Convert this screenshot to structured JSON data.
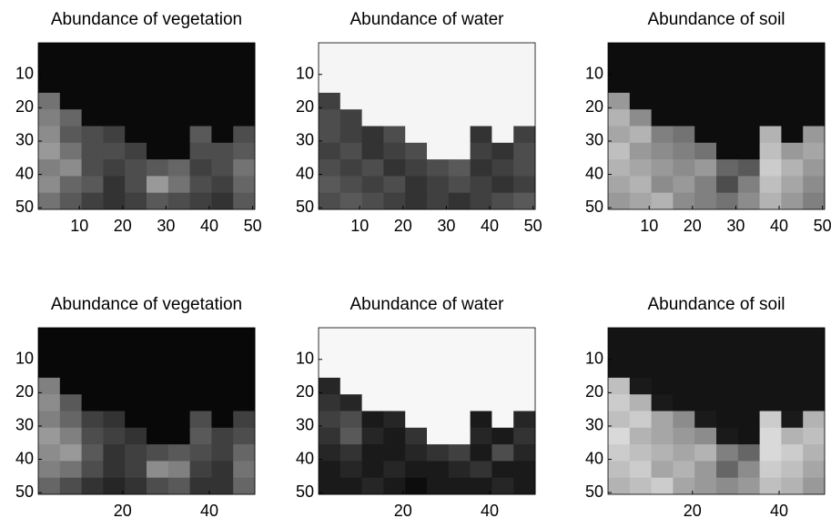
{
  "chart_data": [
    {
      "type": "heatmap",
      "title": "Abundance of vegetation",
      "colormap": "gray",
      "x": [
        3,
        8,
        13,
        18,
        23,
        28,
        33,
        38,
        43,
        48
      ],
      "y": [
        3,
        8,
        13,
        18,
        23,
        28,
        33,
        38,
        43,
        48
      ],
      "xlim": [
        0.5,
        50.5
      ],
      "ylim": [
        50.5,
        0.5
      ],
      "xticks": [
        10,
        20,
        30,
        40,
        50
      ],
      "yticks": [
        10,
        20,
        30,
        40,
        50
      ],
      "z": [
        [
          0.04,
          0.04,
          0.04,
          0.04,
          0.04,
          0.04,
          0.04,
          0.04,
          0.04,
          0.04
        ],
        [
          0.04,
          0.04,
          0.04,
          0.04,
          0.04,
          0.04,
          0.04,
          0.04,
          0.04,
          0.04
        ],
        [
          0.04,
          0.04,
          0.04,
          0.04,
          0.04,
          0.04,
          0.04,
          0.04,
          0.04,
          0.04
        ],
        [
          0.45,
          0.04,
          0.04,
          0.04,
          0.04,
          0.04,
          0.04,
          0.04,
          0.04,
          0.04
        ],
        [
          0.5,
          0.4,
          0.04,
          0.04,
          0.04,
          0.04,
          0.04,
          0.04,
          0.04,
          0.04
        ],
        [
          0.55,
          0.35,
          0.3,
          0.25,
          0.04,
          0.04,
          0.04,
          0.35,
          0.04,
          0.3
        ],
        [
          0.6,
          0.45,
          0.3,
          0.3,
          0.25,
          0.04,
          0.04,
          0.3,
          0.3,
          0.35
        ],
        [
          0.5,
          0.55,
          0.3,
          0.25,
          0.3,
          0.35,
          0.4,
          0.25,
          0.3,
          0.45
        ],
        [
          0.55,
          0.4,
          0.35,
          0.2,
          0.3,
          0.6,
          0.45,
          0.3,
          0.25,
          0.4
        ],
        [
          0.45,
          0.35,
          0.25,
          0.2,
          0.25,
          0.35,
          0.3,
          0.25,
          0.2,
          0.35
        ]
      ]
    },
    {
      "type": "heatmap",
      "title": "Abundance of water",
      "colormap": "gray",
      "x": [
        3,
        8,
        13,
        18,
        23,
        28,
        33,
        38,
        43,
        48
      ],
      "y": [
        3,
        8,
        13,
        18,
        23,
        28,
        33,
        38,
        43,
        48
      ],
      "xlim": [
        0.5,
        50.5
      ],
      "ylim": [
        50.5,
        0.5
      ],
      "xticks": [
        10,
        20,
        30,
        40,
        50
      ],
      "yticks": [
        10,
        20,
        30,
        40,
        50
      ],
      "z": [
        [
          0.96,
          0.96,
          0.96,
          0.96,
          0.96,
          0.96,
          0.96,
          0.96,
          0.96,
          0.96
        ],
        [
          0.96,
          0.96,
          0.96,
          0.96,
          0.96,
          0.96,
          0.96,
          0.96,
          0.96,
          0.96
        ],
        [
          0.96,
          0.96,
          0.96,
          0.96,
          0.96,
          0.96,
          0.96,
          0.96,
          0.96,
          0.96
        ],
        [
          0.25,
          0.96,
          0.96,
          0.96,
          0.96,
          0.96,
          0.96,
          0.96,
          0.96,
          0.96
        ],
        [
          0.3,
          0.25,
          0.96,
          0.96,
          0.96,
          0.96,
          0.96,
          0.96,
          0.96,
          0.96
        ],
        [
          0.3,
          0.25,
          0.2,
          0.3,
          0.96,
          0.96,
          0.96,
          0.2,
          0.96,
          0.25
        ],
        [
          0.25,
          0.3,
          0.2,
          0.25,
          0.3,
          0.96,
          0.96,
          0.25,
          0.2,
          0.3
        ],
        [
          0.3,
          0.25,
          0.3,
          0.2,
          0.25,
          0.3,
          0.35,
          0.2,
          0.25,
          0.3
        ],
        [
          0.35,
          0.3,
          0.25,
          0.3,
          0.2,
          0.25,
          0.3,
          0.25,
          0.2,
          0.25
        ],
        [
          0.3,
          0.35,
          0.3,
          0.25,
          0.2,
          0.25,
          0.2,
          0.25,
          0.3,
          0.35
        ]
      ]
    },
    {
      "type": "heatmap",
      "title": "Abundance of soil",
      "colormap": "gray",
      "x": [
        3,
        8,
        13,
        18,
        23,
        28,
        33,
        38,
        43,
        48
      ],
      "y": [
        3,
        8,
        13,
        18,
        23,
        28,
        33,
        38,
        43,
        48
      ],
      "xlim": [
        0.5,
        50.5
      ],
      "ylim": [
        50.5,
        0.5
      ],
      "xticks": [
        10,
        20,
        30,
        40,
        50
      ],
      "yticks": [
        10,
        20,
        30,
        40,
        50
      ],
      "z": [
        [
          0.05,
          0.05,
          0.05,
          0.05,
          0.05,
          0.05,
          0.05,
          0.05,
          0.05,
          0.05
        ],
        [
          0.05,
          0.05,
          0.05,
          0.05,
          0.05,
          0.05,
          0.05,
          0.05,
          0.05,
          0.05
        ],
        [
          0.05,
          0.05,
          0.05,
          0.05,
          0.05,
          0.05,
          0.05,
          0.05,
          0.05,
          0.05
        ],
        [
          0.6,
          0.05,
          0.05,
          0.05,
          0.05,
          0.05,
          0.05,
          0.05,
          0.05,
          0.05
        ],
        [
          0.7,
          0.55,
          0.05,
          0.05,
          0.05,
          0.05,
          0.05,
          0.05,
          0.05,
          0.05
        ],
        [
          0.65,
          0.7,
          0.5,
          0.45,
          0.05,
          0.05,
          0.05,
          0.7,
          0.05,
          0.6
        ],
        [
          0.75,
          0.6,
          0.55,
          0.5,
          0.45,
          0.05,
          0.05,
          0.75,
          0.6,
          0.65
        ],
        [
          0.7,
          0.65,
          0.6,
          0.55,
          0.6,
          0.4,
          0.35,
          0.8,
          0.7,
          0.6
        ],
        [
          0.65,
          0.7,
          0.55,
          0.6,
          0.5,
          0.3,
          0.5,
          0.75,
          0.65,
          0.55
        ],
        [
          0.6,
          0.65,
          0.7,
          0.55,
          0.5,
          0.45,
          0.55,
          0.7,
          0.6,
          0.5
        ]
      ]
    },
    {
      "type": "heatmap",
      "title": "Abundance of vegetation",
      "colormap": "gray",
      "x": [
        3,
        8,
        13,
        18,
        23,
        28,
        33,
        38,
        43,
        48
      ],
      "y": [
        3,
        8,
        13,
        18,
        23,
        28,
        33,
        38,
        43,
        48
      ],
      "xlim": [
        0.5,
        50.5
      ],
      "ylim": [
        50.5,
        0.5
      ],
      "xticks": [
        20,
        40
      ],
      "yticks": [
        10,
        20,
        30,
        40,
        50
      ],
      "z": [
        [
          0.03,
          0.03,
          0.03,
          0.03,
          0.03,
          0.03,
          0.03,
          0.03,
          0.03,
          0.03
        ],
        [
          0.03,
          0.03,
          0.03,
          0.03,
          0.03,
          0.03,
          0.03,
          0.03,
          0.03,
          0.03
        ],
        [
          0.03,
          0.03,
          0.03,
          0.03,
          0.03,
          0.03,
          0.03,
          0.03,
          0.03,
          0.03
        ],
        [
          0.5,
          0.03,
          0.03,
          0.03,
          0.03,
          0.03,
          0.03,
          0.03,
          0.03,
          0.03
        ],
        [
          0.55,
          0.35,
          0.03,
          0.03,
          0.03,
          0.03,
          0.03,
          0.03,
          0.03,
          0.03
        ],
        [
          0.5,
          0.4,
          0.25,
          0.2,
          0.03,
          0.03,
          0.03,
          0.3,
          0.03,
          0.25
        ],
        [
          0.6,
          0.5,
          0.3,
          0.25,
          0.2,
          0.03,
          0.03,
          0.35,
          0.25,
          0.3
        ],
        [
          0.55,
          0.6,
          0.35,
          0.2,
          0.25,
          0.3,
          0.35,
          0.3,
          0.25,
          0.4
        ],
        [
          0.5,
          0.45,
          0.3,
          0.2,
          0.25,
          0.55,
          0.5,
          0.25,
          0.2,
          0.45
        ],
        [
          0.4,
          0.3,
          0.2,
          0.15,
          0.2,
          0.3,
          0.35,
          0.2,
          0.2,
          0.4
        ]
      ]
    },
    {
      "type": "heatmap",
      "title": "Abundance of water",
      "colormap": "gray",
      "x": [
        3,
        8,
        13,
        18,
        23,
        28,
        33,
        38,
        43,
        48
      ],
      "y": [
        3,
        8,
        13,
        18,
        23,
        28,
        33,
        38,
        43,
        48
      ],
      "xlim": [
        0.5,
        50.5
      ],
      "ylim": [
        50.5,
        0.5
      ],
      "xticks": [
        20,
        40
      ],
      "yticks": [
        10,
        20,
        30,
        40,
        50
      ],
      "z": [
        [
          0.97,
          0.97,
          0.97,
          0.97,
          0.97,
          0.97,
          0.97,
          0.97,
          0.97,
          0.97
        ],
        [
          0.97,
          0.97,
          0.97,
          0.97,
          0.97,
          0.97,
          0.97,
          0.97,
          0.97,
          0.97
        ],
        [
          0.97,
          0.97,
          0.97,
          0.97,
          0.97,
          0.97,
          0.97,
          0.97,
          0.97,
          0.97
        ],
        [
          0.15,
          0.97,
          0.97,
          0.97,
          0.97,
          0.97,
          0.97,
          0.97,
          0.97,
          0.97
        ],
        [
          0.2,
          0.15,
          0.97,
          0.97,
          0.97,
          0.97,
          0.97,
          0.97,
          0.97,
          0.97
        ],
        [
          0.25,
          0.3,
          0.1,
          0.15,
          0.97,
          0.97,
          0.97,
          0.1,
          0.97,
          0.15
        ],
        [
          0.2,
          0.35,
          0.15,
          0.1,
          0.2,
          0.97,
          0.97,
          0.15,
          0.1,
          0.2
        ],
        [
          0.15,
          0.2,
          0.1,
          0.1,
          0.15,
          0.2,
          0.25,
          0.1,
          0.3,
          0.15
        ],
        [
          0.1,
          0.15,
          0.1,
          0.15,
          0.1,
          0.1,
          0.15,
          0.2,
          0.1,
          0.1
        ],
        [
          0.1,
          0.1,
          0.15,
          0.1,
          0.05,
          0.1,
          0.1,
          0.1,
          0.15,
          0.1
        ]
      ]
    },
    {
      "type": "heatmap",
      "title": "Abundance of soil",
      "colormap": "gray",
      "x": [
        3,
        8,
        13,
        18,
        23,
        28,
        33,
        38,
        43,
        48
      ],
      "y": [
        3,
        8,
        13,
        18,
        23,
        28,
        33,
        38,
        43,
        48
      ],
      "xlim": [
        0.5,
        50.5
      ],
      "ylim": [
        50.5,
        0.5
      ],
      "xticks": [
        20,
        40
      ],
      "yticks": [
        10,
        20,
        30,
        40,
        50
      ],
      "z": [
        [
          0.08,
          0.08,
          0.08,
          0.08,
          0.08,
          0.08,
          0.08,
          0.08,
          0.08,
          0.08
        ],
        [
          0.08,
          0.08,
          0.08,
          0.08,
          0.08,
          0.08,
          0.08,
          0.08,
          0.08,
          0.08
        ],
        [
          0.08,
          0.08,
          0.08,
          0.08,
          0.08,
          0.08,
          0.08,
          0.08,
          0.08,
          0.08
        ],
        [
          0.75,
          0.1,
          0.08,
          0.08,
          0.08,
          0.08,
          0.08,
          0.08,
          0.08,
          0.08
        ],
        [
          0.8,
          0.7,
          0.1,
          0.08,
          0.08,
          0.08,
          0.08,
          0.08,
          0.08,
          0.08
        ],
        [
          0.75,
          0.8,
          0.65,
          0.55,
          0.1,
          0.08,
          0.08,
          0.8,
          0.1,
          0.7
        ],
        [
          0.85,
          0.7,
          0.65,
          0.6,
          0.55,
          0.1,
          0.08,
          0.85,
          0.7,
          0.75
        ],
        [
          0.8,
          0.75,
          0.7,
          0.65,
          0.7,
          0.5,
          0.4,
          0.85,
          0.8,
          0.7
        ],
        [
          0.75,
          0.8,
          0.65,
          0.7,
          0.6,
          0.4,
          0.55,
          0.8,
          0.75,
          0.65
        ],
        [
          0.7,
          0.75,
          0.8,
          0.65,
          0.6,
          0.55,
          0.6,
          0.75,
          0.7,
          0.6
        ]
      ]
    }
  ]
}
